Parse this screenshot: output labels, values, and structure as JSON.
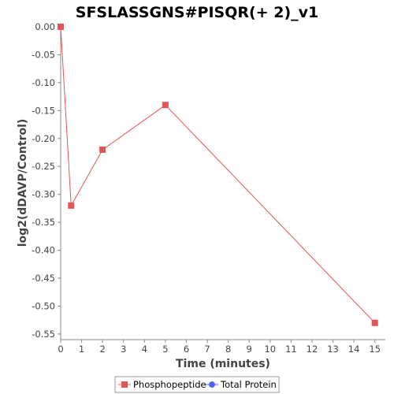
{
  "chart_data": {
    "type": "line",
    "title": "SFSLASSGNS#PISQR(+ 2)_v1",
    "xlabel": "Time (minutes)",
    "ylabel": "log2(dDAVP/Control)",
    "xlim": [
      0,
      15.5
    ],
    "ylim": [
      -0.56,
      0.0
    ],
    "x_ticks": [
      0,
      1,
      2,
      3,
      4,
      5,
      6,
      7,
      8,
      9,
      10,
      11,
      12,
      13,
      14,
      15
    ],
    "x_tick_labels": [
      "0",
      "1",
      "2",
      "3",
      "4",
      "5",
      "6",
      "7",
      "8",
      "9",
      "10",
      "11",
      "12",
      "13",
      "14",
      "15"
    ],
    "y_ticks": [
      0.0,
      -0.05,
      -0.1,
      -0.15,
      -0.2,
      -0.25,
      -0.3,
      -0.35,
      -0.4,
      -0.45,
      -0.5,
      -0.55
    ],
    "y_tick_labels": [
      "0.00",
      "-0.05",
      "-0.10",
      "-0.15",
      "-0.20",
      "-0.25",
      "-0.30",
      "-0.35",
      "-0.40",
      "-0.45",
      "-0.50",
      "-0.55"
    ],
    "grid": false,
    "legend_position": "bottom",
    "series": [
      {
        "name": "Phosphopeptide",
        "color": "#e05555",
        "marker": "square",
        "x": [
          0,
          0.5,
          2,
          5,
          15
        ],
        "y": [
          0.0,
          -0.32,
          -0.22,
          -0.14,
          -0.53
        ]
      },
      {
        "name": "Total Protein",
        "color": "#5566ee",
        "marker": "circle",
        "x": [],
        "y": []
      }
    ]
  }
}
